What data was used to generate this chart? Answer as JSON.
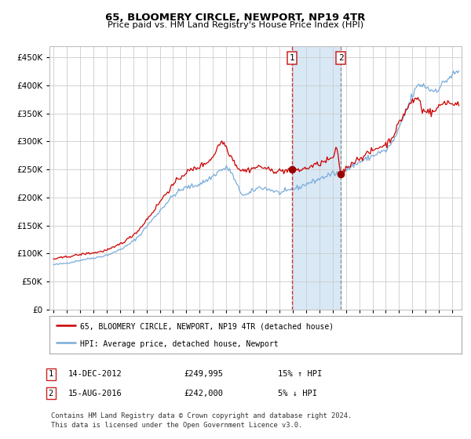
{
  "title": "65, BLOOMERY CIRCLE, NEWPORT, NP19 4TR",
  "subtitle": "Price paid vs. HM Land Registry's House Price Index (HPI)",
  "background_color": "#ffffff",
  "plot_bg_color": "#ffffff",
  "grid_color": "#cccccc",
  "hpi_color": "#7aaddb",
  "price_color": "#cc0000",
  "marker_color": "#990000",
  "sale1_date_num": 2012.958,
  "sale1_price": 249995,
  "sale1_label": "1",
  "sale2_date_num": 2016.625,
  "sale2_price": 242000,
  "sale2_label": "2",
  "legend_entry1": "65, BLOOMERY CIRCLE, NEWPORT, NP19 4TR (detached house)",
  "legend_entry2": "HPI: Average price, detached house, Newport",
  "table_row1": [
    "1",
    "14-DEC-2012",
    "£249,995",
    "15% ↑ HPI"
  ],
  "table_row2": [
    "2",
    "15-AUG-2016",
    "£242,000",
    "5% ↓ HPI"
  ],
  "footnote_line1": "Contains HM Land Registry data © Crown copyright and database right 2024.",
  "footnote_line2": "This data is licensed under the Open Government Licence v3.0.",
  "ylim": [
    0,
    470000
  ],
  "yticks": [
    0,
    50000,
    100000,
    150000,
    200000,
    250000,
    300000,
    350000,
    400000,
    450000
  ],
  "xmin": 1994.7,
  "xmax": 2025.7,
  "span_color": "#d8e8f5",
  "vline1_color": "#cc3333",
  "vline2_color": "#888888"
}
